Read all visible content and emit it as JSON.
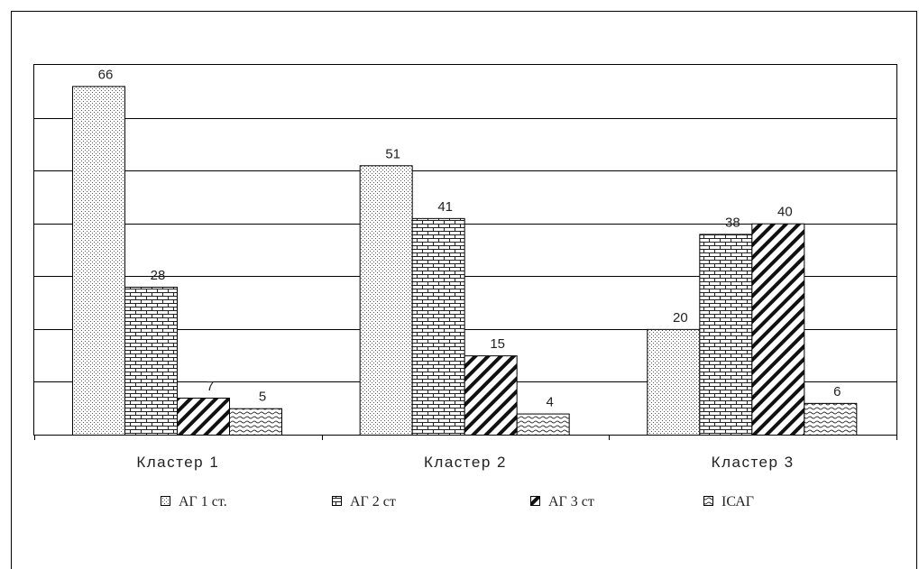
{
  "chart_data": {
    "type": "bar",
    "categories": [
      "Кластер 1",
      "Кластер 2",
      "Кластер 3"
    ],
    "series": [
      {
        "name": "АГ 1 ст.",
        "values": [
          66,
          51,
          20
        ],
        "pattern": "dots"
      },
      {
        "name": "АГ 2 ст",
        "values": [
          28,
          41,
          38
        ],
        "pattern": "bricks"
      },
      {
        "name": "АГ 3 ст",
        "values": [
          7,
          15,
          40
        ],
        "pattern": "diagonal"
      },
      {
        "name": "ІСАГ",
        "values": [
          5,
          4,
          6
        ],
        "pattern": "waves"
      }
    ],
    "ylim": [
      0,
      70
    ],
    "grid": true,
    "y_axis_tick_labels_visible": false,
    "legend": "bottom"
  }
}
